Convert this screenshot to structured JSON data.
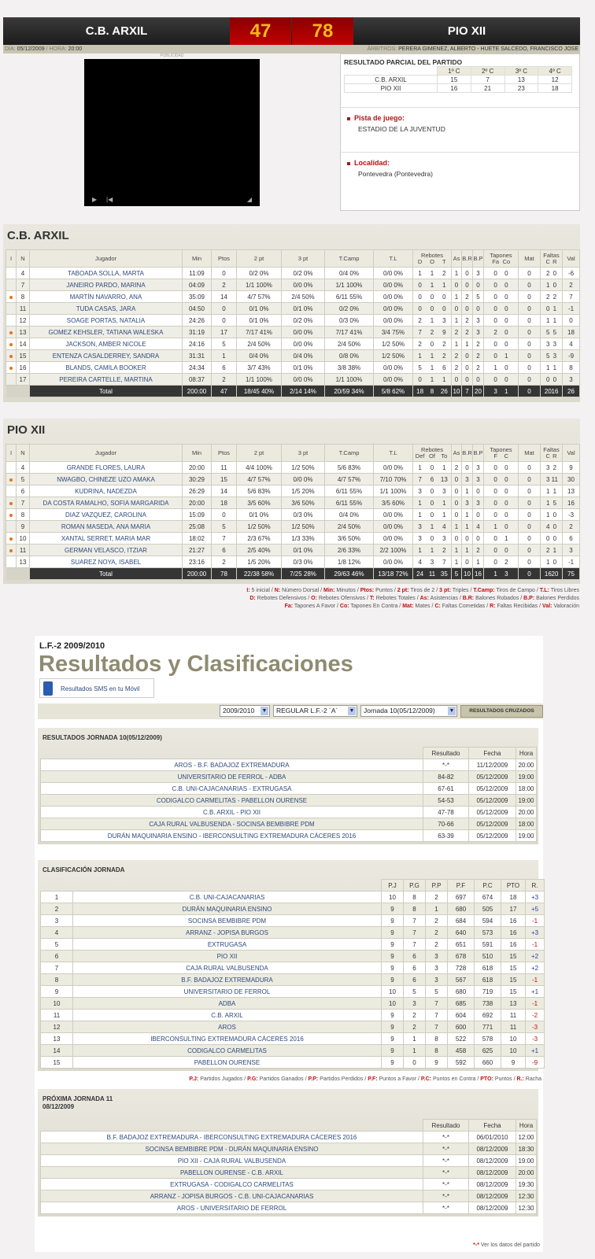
{
  "match": {
    "home": "C.B. ARXIL",
    "away": "PIO XII",
    "home_score": "47",
    "away_score": "78",
    "date_label": "DÍA:",
    "date": "05/12/2009",
    "time_label": "HORA:",
    "time": "20:00",
    "referees_label": "ÁRBITROS:",
    "referees": "PERERA GIMENEZ, ALBERTO - HUETE SALCEDO, FRANCISCO JOSE",
    "ad_label": "PUBLICIDAD",
    "partial_title": "RESULTADO PARCIAL DEL PARTIDO",
    "quarters": [
      "1º C",
      "2º C",
      "3º C",
      "4º C"
    ],
    "partials": [
      {
        "team": "C.B. ARXIL",
        "q": [
          "15",
          "7",
          "13",
          "12"
        ]
      },
      {
        "team": "PIO XII",
        "q": [
          "16",
          "21",
          "23",
          "18"
        ]
      }
    ],
    "venue_label": "Pista de juego:",
    "venue": "ESTADIO DE LA JUVENTUD",
    "locality_label": "Localidad:",
    "locality": "Pontevedra (Pontevedra)"
  },
  "boxscores": [
    {
      "team": "C.B. ARXIL",
      "headers": [
        "I",
        "N",
        "Jugador",
        "Min",
        "Ptos",
        "2 pt",
        "3 pt",
        "T.Camp",
        "T.L",
        "Rebotes",
        "As",
        "B.R",
        "B.P",
        "Tapones",
        "Mat",
        "Faltas",
        "Val"
      ],
      "reb_sub": [
        "D",
        "O",
        "T"
      ],
      "tap_sub": [
        "Fa",
        "Co"
      ],
      "fal_sub": [
        "C",
        "R"
      ],
      "rows": [
        {
          "starter": false,
          "s": [
            "4",
            "TABOADA SOLLA, MARTA",
            "11:09",
            "0",
            "0/2 0%",
            "0/2 0%",
            "0/4 0%",
            "0/0 0%",
            "1",
            "1",
            "2",
            "1",
            "0",
            "3",
            "0",
            "0",
            "0",
            "2",
            "0",
            "-6"
          ]
        },
        {
          "starter": false,
          "s": [
            "7",
            "JANEIRO PARDO, MARINA",
            "04:09",
            "2",
            "1/1 100%",
            "0/0 0%",
            "1/1 100%",
            "0/0 0%",
            "0",
            "1",
            "1",
            "0",
            "0",
            "0",
            "0",
            "0",
            "0",
            "1",
            "0",
            "2"
          ]
        },
        {
          "starter": true,
          "s": [
            "8",
            "MARTÍN NAVARRO, ANA",
            "35:09",
            "14",
            "4/7 57%",
            "2/4 50%",
            "6/11 55%",
            "0/0 0%",
            "0",
            "0",
            "0",
            "1",
            "2",
            "5",
            "0",
            "0",
            "0",
            "2",
            "2",
            "7"
          ]
        },
        {
          "starter": false,
          "s": [
            "11",
            "TUDA CASAS, JARA",
            "04:50",
            "0",
            "0/1 0%",
            "0/1 0%",
            "0/2 0%",
            "0/0 0%",
            "0",
            "0",
            "0",
            "0",
            "0",
            "0",
            "0",
            "0",
            "0",
            "0",
            "1",
            "-1"
          ]
        },
        {
          "starter": false,
          "s": [
            "12",
            "SOAGE PORTAS, NATALIA",
            "24:26",
            "0",
            "0/1 0%",
            "0/2 0%",
            "0/3 0%",
            "0/0 0%",
            "2",
            "1",
            "3",
            "1",
            "2",
            "3",
            "0",
            "0",
            "0",
            "1",
            "1",
            "0"
          ]
        },
        {
          "starter": true,
          "s": [
            "13",
            "GOMEZ KEHSLER, TATIANA WALESKA",
            "31:19",
            "17",
            "7/17 41%",
            "0/0 0%",
            "7/17 41%",
            "3/4 75%",
            "7",
            "2",
            "9",
            "2",
            "2",
            "3",
            "2",
            "0",
            "0",
            "5",
            "5",
            "18"
          ]
        },
        {
          "starter": true,
          "s": [
            "14",
            "JACKSON, AMBER NICOLE",
            "24:16",
            "5",
            "2/4 50%",
            "0/0 0%",
            "2/4 50%",
            "1/2 50%",
            "2",
            "0",
            "2",
            "1",
            "1",
            "2",
            "0",
            "0",
            "0",
            "3",
            "3",
            "4"
          ]
        },
        {
          "starter": true,
          "s": [
            "15",
            "ENTENZA CASALDERREY, SANDRA",
            "31:31",
            "1",
            "0/4 0%",
            "0/4 0%",
            "0/8 0%",
            "1/2 50%",
            "1",
            "1",
            "2",
            "2",
            "0",
            "2",
            "0",
            "1",
            "0",
            "5",
            "3",
            "-9"
          ]
        },
        {
          "starter": true,
          "s": [
            "16",
            "BLANDS, CAMILA BOOKER",
            "24:34",
            "6",
            "3/7 43%",
            "0/1 0%",
            "3/8 38%",
            "0/0 0%",
            "5",
            "1",
            "6",
            "2",
            "0",
            "2",
            "1",
            "0",
            "0",
            "1",
            "1",
            "8"
          ]
        },
        {
          "starter": false,
          "s": [
            "17",
            "PEREIRA CARTELLE, MARTINA",
            "08:37",
            "2",
            "1/1 100%",
            "0/0 0%",
            "1/1 100%",
            "0/0 0%",
            "0",
            "1",
            "1",
            "0",
            "0",
            "0",
            "0",
            "0",
            "0",
            "0",
            "0",
            "3"
          ]
        }
      ],
      "total": [
        "Total",
        "200:00",
        "47",
        "18/45 40%",
        "2/14 14%",
        "20/59 34%",
        "5/8 62%",
        "18",
        "8",
        "26",
        "10",
        "7",
        "20",
        "3",
        "1",
        "0",
        "20",
        "16",
        "26"
      ]
    },
    {
      "team": "PIO XII",
      "headers": [
        "I",
        "N",
        "Jugador",
        "Min",
        "Ptos",
        "2 pt",
        "3 pt",
        "T.Camp",
        "T.L",
        "Rebotes",
        "As",
        "B.R",
        "B.P",
        "Tapones",
        "Mat",
        "Faltas",
        "Val"
      ],
      "reb_sub": [
        "Def",
        "Of",
        "To"
      ],
      "tap_sub": [
        "F",
        "C"
      ],
      "fal_sub": [
        "C",
        "R"
      ],
      "rows": [
        {
          "starter": false,
          "s": [
            "4",
            "GRANDE FLORES, LAURA",
            "20:00",
            "11",
            "4/4 100%",
            "1/2 50%",
            "5/6 83%",
            "0/0 0%",
            "1",
            "0",
            "1",
            "2",
            "0",
            "3",
            "0",
            "0",
            "0",
            "3",
            "2",
            "9"
          ]
        },
        {
          "starter": true,
          "s": [
            "5",
            "NWAGBO, CHINEZE UZO AMAKA",
            "30:29",
            "15",
            "4/7 57%",
            "0/0 0%",
            "4/7 57%",
            "7/10 70%",
            "7",
            "6",
            "13",
            "0",
            "3",
            "3",
            "0",
            "0",
            "0",
            "3",
            "11",
            "30"
          ]
        },
        {
          "starter": false,
          "s": [
            "6",
            "KUDRINA, NADEZDA",
            "26:29",
            "14",
            "5/6 83%",
            "1/5 20%",
            "6/11 55%",
            "1/1 100%",
            "3",
            "0",
            "3",
            "0",
            "1",
            "0",
            "0",
            "0",
            "0",
            "1",
            "1",
            "13"
          ]
        },
        {
          "starter": true,
          "s": [
            "7",
            "DA COSTA RAMALHO, SOFIA MARGARIDA",
            "20:00",
            "18",
            "3/5 60%",
            "3/6 50%",
            "6/11 55%",
            "3/5 60%",
            "1",
            "0",
            "1",
            "0",
            "3",
            "3",
            "0",
            "0",
            "0",
            "1",
            "5",
            "16"
          ]
        },
        {
          "starter": true,
          "s": [
            "8",
            "DIAZ VAZQUEZ, CAROLINA",
            "15:09",
            "0",
            "0/1 0%",
            "0/3 0%",
            "0/4 0%",
            "0/0 0%",
            "1",
            "0",
            "1",
            "0",
            "1",
            "0",
            "0",
            "0",
            "0",
            "1",
            "0",
            "-3"
          ]
        },
        {
          "starter": false,
          "s": [
            "9",
            "ROMAN MASEDA, ANA MARIA",
            "25:08",
            "5",
            "1/2 50%",
            "1/2 50%",
            "2/4 50%",
            "0/0 0%",
            "3",
            "1",
            "4",
            "1",
            "1",
            "4",
            "1",
            "0",
            "0",
            "4",
            "0",
            "2"
          ]
        },
        {
          "starter": true,
          "s": [
            "10",
            "XANTAL SERRET, MARIA MAR",
            "18:02",
            "7",
            "2/3 67%",
            "1/3 33%",
            "3/6 50%",
            "0/0 0%",
            "3",
            "0",
            "3",
            "0",
            "0",
            "0",
            "0",
            "1",
            "0",
            "0",
            "0",
            "6"
          ]
        },
        {
          "starter": true,
          "s": [
            "11",
            "GERMAN VELASCO, ITZIAR",
            "21:27",
            "6",
            "2/5 40%",
            "0/1 0%",
            "2/6 33%",
            "2/2 100%",
            "1",
            "1",
            "2",
            "1",
            "1",
            "2",
            "0",
            "0",
            "0",
            "2",
            "1",
            "3"
          ]
        },
        {
          "starter": false,
          "s": [
            "13",
            "SUAREZ NOYA, ISABEL",
            "23:16",
            "2",
            "1/5 20%",
            "0/3 0%",
            "1/8 12%",
            "0/0 0%",
            "4",
            "3",
            "7",
            "1",
            "0",
            "1",
            "0",
            "2",
            "0",
            "1",
            "0",
            "-1"
          ]
        }
      ],
      "total": [
        "Total",
        "200:00",
        "78",
        "22/38 58%",
        "7/25 28%",
        "29/63 46%",
        "13/18 72%",
        "24",
        "11",
        "35",
        "5",
        "10",
        "16",
        "1",
        "3",
        "0",
        "16",
        "20",
        "75"
      ]
    }
  ],
  "box_legend": [
    [
      [
        "I:",
        "5 inicial"
      ],
      [
        "N:",
        "Número Dorsal"
      ],
      [
        "Min:",
        "Minutos"
      ],
      [
        "Ptos:",
        "Puntos"
      ],
      [
        "2 pt:",
        "Tiros de 2"
      ],
      [
        "3 pt:",
        "Triples"
      ],
      [
        "T.Camp:",
        "Tiros de Campo"
      ],
      [
        "T.L:",
        "Tiros Libres"
      ]
    ],
    [
      [
        "D:",
        "Rebotes Defensivos"
      ],
      [
        "O:",
        "Rebotes Ofensivos"
      ],
      [
        "T:",
        "Rebotes Totales"
      ],
      [
        "As:",
        "Asistencias"
      ],
      [
        "B.R:",
        "Balones Robados"
      ],
      [
        "B.P:",
        "Balones Perdidos"
      ]
    ],
    [
      [
        "Fa:",
        "Tapones A Favor"
      ],
      [
        "Co:",
        "Tapones En Contra"
      ],
      [
        "Mat:",
        "Mates"
      ],
      [
        "C:",
        "Faltas Cometidas"
      ],
      [
        "R:",
        "Faltas Recibidas"
      ],
      [
        "Val:",
        "Valoración"
      ]
    ]
  ],
  "league": {
    "subtitle": "L.F.-2 2009/2010",
    "title": "Resultados y Clasificaciones",
    "sms_label": "Resultados SMS en tu Móvil",
    "season_select": "2009/2010",
    "phase_select": "REGULAR L.F.-2 ´A´",
    "round_select": "Jornada 10(05/12/2009)",
    "cross_button": "RESULTADOS CRUZADOS"
  },
  "results": {
    "title": "RESULTADOS JORNADA 10(05/12/2009)",
    "headers": [
      "Resultado",
      "Fecha",
      "Hora"
    ],
    "rows": [
      [
        "AROS - B.F. BADAJOZ EXTREMADURA",
        "*-*",
        "11/12/2009",
        "20:00"
      ],
      [
        "UNIVERSITARIO DE FERROL - ADBA",
        "84-82",
        "05/12/2009",
        "19:00"
      ],
      [
        "C.B. UNI-CAJACANARIAS - EXTRUGASA",
        "67-61",
        "05/12/2009",
        "18:00"
      ],
      [
        "CODIGALCO CARMELITAS - PABELLON OURENSE",
        "54-53",
        "05/12/2009",
        "19:00"
      ],
      [
        "C.B. ARXIL - PIO XII",
        "47-78",
        "05/12/2009",
        "20:00"
      ],
      [
        "CAJA RURAL VALBUSENDA - SOCINSA BEMBIBRE PDM",
        "70-66",
        "05/12/2009",
        "18:00"
      ],
      [
        "DURÁN MAQUINARIA ENSINO - IBERCONSULTING EXTREMADURA CÁCERES 2016",
        "63-39",
        "05/12/2009",
        "19:00"
      ]
    ]
  },
  "standings": {
    "title": "CLASIFICACIÓN JORNADA",
    "headers": [
      "P.J",
      "P.G",
      "P.P",
      "P.F",
      "P.C",
      "PTO",
      "R."
    ],
    "rows": [
      [
        "1",
        "C.B. UNI-CAJACANARIAS",
        "10",
        "8",
        "2",
        "697",
        "674",
        "18",
        "+3"
      ],
      [
        "2",
        "DURÁN MAQUINARIA ENSINO",
        "9",
        "8",
        "1",
        "680",
        "505",
        "17",
        "+5"
      ],
      [
        "3",
        "SOCINSA BEMBIBRE PDM",
        "9",
        "7",
        "2",
        "684",
        "594",
        "16",
        "-1"
      ],
      [
        "4",
        "ARRANZ - JOPISA BURGOS",
        "9",
        "7",
        "2",
        "640",
        "573",
        "16",
        "+3"
      ],
      [
        "5",
        "EXTRUGASA",
        "9",
        "7",
        "2",
        "651",
        "591",
        "16",
        "-1"
      ],
      [
        "6",
        "PIO XII",
        "9",
        "6",
        "3",
        "678",
        "510",
        "15",
        "+2"
      ],
      [
        "7",
        "CAJA RURAL VALBUSENDA",
        "9",
        "6",
        "3",
        "728",
        "618",
        "15",
        "+2"
      ],
      [
        "8",
        "B.F. BADAJOZ EXTREMADURA",
        "9",
        "6",
        "3",
        "567",
        "618",
        "15",
        "-1"
      ],
      [
        "9",
        "UNIVERSITARIO DE FERROL",
        "10",
        "5",
        "5",
        "680",
        "719",
        "15",
        "+1"
      ],
      [
        "10",
        "ADBA",
        "10",
        "3",
        "7",
        "685",
        "738",
        "13",
        "-1"
      ],
      [
        "11",
        "C.B. ARXIL",
        "9",
        "2",
        "7",
        "604",
        "692",
        "11",
        "-2"
      ],
      [
        "12",
        "AROS",
        "9",
        "2",
        "7",
        "600",
        "771",
        "11",
        "-3"
      ],
      [
        "13",
        "IBERCONSULTING EXTREMADURA CÁCERES 2016",
        "9",
        "1",
        "8",
        "522",
        "578",
        "10",
        "-3"
      ],
      [
        "14",
        "CODIGALCO CARMELITAS",
        "9",
        "1",
        "8",
        "458",
        "625",
        "10",
        "+1"
      ],
      [
        "15",
        "PABELLON OURENSE",
        "9",
        "0",
        "9",
        "592",
        "660",
        "9",
        "-9"
      ]
    ],
    "legend": [
      [
        "P.J:",
        "Partidos Jugados"
      ],
      [
        "P.G:",
        "Partidos Ganados"
      ],
      [
        "P.P:",
        "Partidos Perdidos"
      ],
      [
        "P.F:",
        "Puntos a Favor"
      ],
      [
        "P.C:",
        "Puntos en Contra"
      ],
      [
        "PTO:",
        "Puntos"
      ],
      [
        "R.:",
        "Racha"
      ]
    ]
  },
  "next": {
    "title": "PRÓXIMA JORNADA 11",
    "date": "08/12/2009",
    "headers": [
      "Resultado",
      "Fecha",
      "Hora"
    ],
    "rows": [
      [
        "B.F. BADAJOZ EXTREMADURA - IBERCONSULTING EXTREMADURA CÁCERES 2016",
        "*-*",
        "06/01/2010",
        "12:00"
      ],
      [
        "SOCINSA BEMBIBRE PDM - DURÁN MAQUINARIA ENSINO",
        "*-*",
        "08/12/2009",
        "18:30"
      ],
      [
        "PIO XII - CAJA RURAL VALBUSENDA",
        "*-*",
        "08/12/2009",
        "19:00"
      ],
      [
        "PABELLON OURENSE - C.B. ARXIL",
        "*-*",
        "08/12/2009",
        "20:00"
      ],
      [
        "EXTRUGASA - CODIGALCO CARMELITAS",
        "*-*",
        "08/12/2009",
        "19:30"
      ],
      [
        "ARRANZ - JOPISA BURGOS - C.B. UNI-CAJACANARIAS",
        "*-*",
        "08/12/2009",
        "12:30"
      ],
      [
        "AROS - UNIVERSITARIO DE FERROL",
        "*-*",
        "08/12/2009",
        "12:30"
      ]
    ],
    "note_symbol": "*-*",
    "note": "Ver los datos del partido"
  },
  "colors": {
    "accent_red": "#b01414",
    "score_yellow": "#f7b81c",
    "title_olive": "#8f8b72",
    "link_blue": "#2e4a7c"
  }
}
